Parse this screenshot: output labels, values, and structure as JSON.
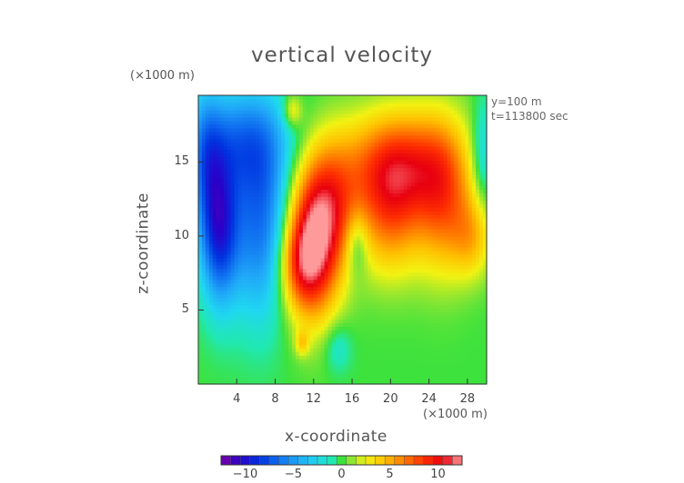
{
  "chart_data": {
    "type": "heatmap",
    "title": "vertical velocity",
    "xlabel": "x-coordinate",
    "ylabel": "z-coordinate",
    "x_unit": "(×1000 m)",
    "y_unit": "(×1000 m)",
    "annotations": [
      "y=100 m",
      "t=113800 sec"
    ],
    "xlim": [
      0,
      30
    ],
    "ylim": [
      0,
      19.5
    ],
    "xticks": [
      "4",
      "8",
      "12",
      "16",
      "20",
      "24",
      "28"
    ],
    "yticks": [
      "5",
      "10",
      "15"
    ],
    "colorbar": {
      "ticks": [
        "−10",
        "−5",
        "0",
        "5",
        "10"
      ],
      "range": [
        -12.5,
        12.5
      ]
    },
    "background_value": 0,
    "features": [
      {
        "x": 2.2,
        "z": 10.5,
        "sx": 1.4,
        "sz": 3.5,
        "v": -8.5
      },
      {
        "x": 6.5,
        "z": 11.0,
        "sx": 2.2,
        "sz": 4.5,
        "v": -6.5
      },
      {
        "x": 4.5,
        "z": 16.5,
        "sx": 3.5,
        "sz": 2.5,
        "v": -5
      },
      {
        "x": 0.8,
        "z": 15.0,
        "sx": 1.2,
        "sz": 3.5,
        "v": -4
      },
      {
        "x": 12.0,
        "z": 9.5,
        "sx": 2.0,
        "sz": 3.5,
        "v": 11
      },
      {
        "x": 14.0,
        "z": 12.5,
        "sx": 2.0,
        "sz": 3.0,
        "v": 5
      },
      {
        "x": 10.5,
        "z": 8.0,
        "sx": 1.5,
        "sz": 2.0,
        "v": 4
      },
      {
        "x": 21.0,
        "z": 15.0,
        "sx": 4.0,
        "sz": 2.5,
        "v": 7.5
      },
      {
        "x": 20.0,
        "z": 11.5,
        "sx": 2.5,
        "sz": 3.0,
        "v": 6
      },
      {
        "x": 25.5,
        "z": 12.5,
        "sx": 2.0,
        "sz": 3.5,
        "v": 6
      },
      {
        "x": 28.5,
        "z": 10.0,
        "sx": 1.5,
        "sz": 2.0,
        "v": 4
      },
      {
        "x": 9.8,
        "z": 18.5,
        "sx": 0.7,
        "sz": 0.8,
        "v": 3.5
      },
      {
        "x": 16.5,
        "z": 9.5,
        "sx": 0.8,
        "sz": 1.5,
        "v": -3
      },
      {
        "x": 29.6,
        "z": 15.5,
        "sx": 0.8,
        "sz": 2.5,
        "v": -3
      },
      {
        "x": 14.5,
        "z": 2.5,
        "sx": 1.0,
        "sz": 1.2,
        "v": -2
      },
      {
        "x": 10.8,
        "z": 2.8,
        "sx": 0.5,
        "sz": 0.6,
        "v": 3
      }
    ]
  }
}
